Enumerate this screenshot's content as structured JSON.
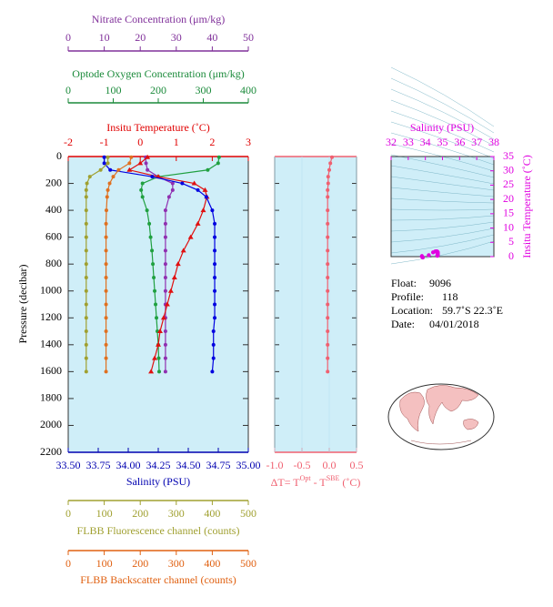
{
  "chart_data": [
    {
      "type": "line",
      "ylabel": "Pressure (decibar)",
      "y": [
        5,
        50,
        100,
        150,
        200,
        250,
        300,
        400,
        500,
        600,
        700,
        800,
        900,
        1000,
        1100,
        1200,
        1300,
        1400,
        1500,
        1600
      ],
      "ylim": [
        0,
        2200
      ],
      "yticks": [
        0,
        200,
        400,
        600,
        800,
        1000,
        1200,
        1400,
        1600,
        1800,
        2000,
        2200
      ],
      "axes": [
        {
          "title": "Nitrate Concentration (μm/kg)",
          "xlim": [
            0,
            50
          ],
          "xticks": [
            0,
            10,
            20,
            30,
            40,
            50
          ],
          "color": "#80309a"
        },
        {
          "title": "Optode Oxygen Concentration (μm/kg)",
          "xlim": [
            0,
            400
          ],
          "xticks": [
            0,
            100,
            200,
            300,
            400
          ],
          "color": "#1a8a3a"
        },
        {
          "title": "Insitu Temperature (˚C)",
          "xlim": [
            -2,
            3
          ],
          "xticks": [
            -2,
            -1,
            0,
            1,
            2,
            3
          ],
          "color": "#e00000"
        },
        {
          "title": "Salinity (PSU)",
          "xlim": [
            33.5,
            35
          ],
          "xticks": [
            {
              "value": 33.5,
              "label": "33.50"
            },
            33.75,
            {
              "value": 34,
              "label": "34.00"
            },
            34.25,
            {
              "value": 34.5,
              "label": "34.50"
            },
            34.75,
            {
              "value": 35,
              "label": "35.00"
            }
          ],
          "color": "#0000b0"
        },
        {
          "title": "FLBB Fluorescence channel (counts)",
          "xlim": [
            0,
            500
          ],
          "xticks": [
            0,
            100,
            200,
            300,
            400,
            500
          ],
          "color": "#a0a030"
        },
        {
          "title": "FLBB Backscatter channel (counts)",
          "xlim": [
            0,
            500
          ],
          "xticks": [
            0,
            100,
            200,
            300,
            400,
            500
          ],
          "color": "#e06010"
        }
      ],
      "series": [
        {
          "axis": 0,
          "color": "#9030b0",
          "values": [
            21.5,
            21.6,
            22,
            25,
            29,
            29,
            28,
            27,
            27,
            27,
            27,
            27,
            27,
            27,
            27,
            27,
            27,
            27,
            27,
            27
          ]
        },
        {
          "axis": 1,
          "color": "#20a040",
          "values": [
            335,
            333,
            310,
            200,
            165,
            162,
            165,
            175,
            180,
            183,
            186,
            188,
            190,
            192,
            194,
            196,
            198,
            200,
            201,
            202
          ]
        },
        {
          "axis": 2,
          "color": "#e01010",
          "values": [
            0.2,
            0.0,
            -0.3,
            0.5,
            1.5,
            1.8,
            1.85,
            1.75,
            1.6,
            1.4,
            1.2,
            1.05,
            0.95,
            0.85,
            0.75,
            0.65,
            0.55,
            0.5,
            0.4,
            0.3
          ]
        },
        {
          "axis": 3,
          "color": "#0000e0",
          "values": [
            33.8,
            33.8,
            33.85,
            34.2,
            34.45,
            34.58,
            34.65,
            34.7,
            34.72,
            34.72,
            34.72,
            34.72,
            34.72,
            34.72,
            34.72,
            34.72,
            34.71,
            34.71,
            34.71,
            34.7
          ]
        },
        {
          "axis": 4,
          "color": "#a0a030",
          "values": [
            110,
            110,
            90,
            60,
            52,
            50,
            50,
            50,
            50,
            50,
            50,
            50,
            50,
            50,
            50,
            50,
            50,
            50,
            50,
            50
          ]
        },
        {
          "axis": 5,
          "color": "#e07020",
          "values": [
            175,
            170,
            140,
            125,
            115,
            110,
            108,
            106,
            105,
            105,
            105,
            105,
            105,
            105,
            105,
            105,
            105,
            105,
            105,
            105
          ]
        }
      ]
    },
    {
      "type": "line",
      "xlabel": [
        "ΔT= T",
        "Opt",
        " - T",
        "SBE",
        " (˚C)"
      ],
      "xlim": [
        -1,
        0.5
      ],
      "xticks": [
        {
          "value": -1,
          "label": "-1.0"
        },
        {
          "value": -0.5,
          "label": "-0.5"
        },
        {
          "value": 0,
          "label": "0.0"
        },
        {
          "value": 0.5,
          "label": "0.5"
        }
      ],
      "color": "#f06070",
      "values": [
        0.05,
        0.02,
        0.0,
        -0.02,
        -0.02,
        -0.03,
        -0.03,
        -0.03,
        -0.03,
        -0.03,
        -0.03,
        -0.03,
        -0.03,
        -0.03,
        -0.03,
        -0.03,
        -0.03,
        -0.03,
        -0.03,
        -0.03
      ]
    },
    {
      "type": "scatter",
      "xlabel": "Salinity (PSU)",
      "ylabel": "Insitu Temperature (˚C)",
      "xlim": [
        32,
        38
      ],
      "xticks": [
        32,
        33,
        34,
        35,
        36,
        37,
        38
      ],
      "ylim": [
        0,
        35
      ],
      "yticks": [
        0,
        5,
        10,
        15,
        20,
        25,
        30,
        35
      ],
      "color": "#e000e0"
    }
  ],
  "info": [
    {
      "label": "Float:",
      "value": "9096"
    },
    {
      "label": "Profile:",
      "value": "118"
    },
    {
      "label": "Location:",
      "value": "59.7˚S  22.3˚E"
    },
    {
      "label": "Date:",
      "value": "04/01/2018"
    }
  ]
}
